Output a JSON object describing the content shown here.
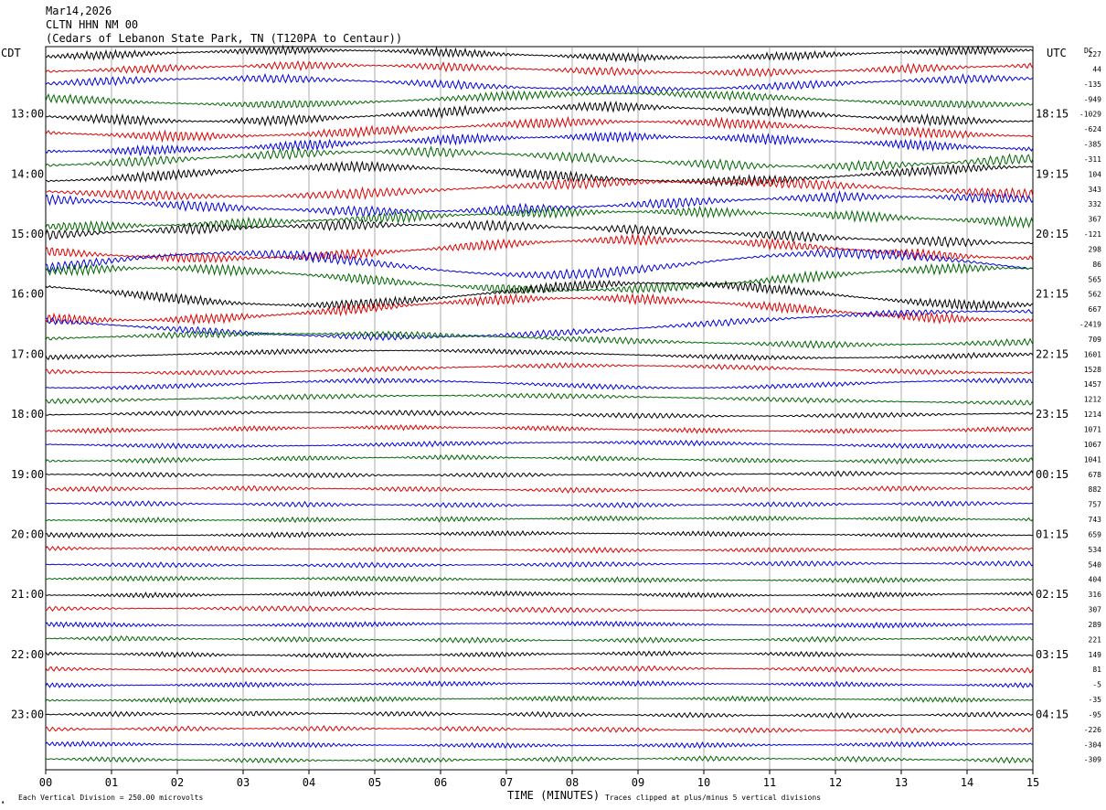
{
  "header": {
    "date": "Mar14,2026",
    "station": "CLTN HHN NM 00",
    "location": "(Cedars of Lebanon State Park, TN (T120PA to Centaur))"
  },
  "labels": {
    "left_tz": "CDT",
    "right_tz": "UTC",
    "dc_header": "DC",
    "x_title": "TIME (MINUTES)",
    "scale_note": "Each Vertical Division =  250.00 microvolts",
    "clip_note": "Traces clipped at plus/minus 5 vertical divisions"
  },
  "chart_data": {
    "type": "line",
    "subtype": "helicorder",
    "colors": [
      "#000000",
      "#dd0000",
      "#0000dd",
      "#006600"
    ],
    "x_ticks": [
      "00",
      "01",
      "02",
      "03",
      "04",
      "05",
      "06",
      "07",
      "08",
      "09",
      "10",
      "11",
      "12",
      "13",
      "14",
      "15"
    ],
    "xlim": [
      0,
      15
    ],
    "rows_per_hour": 4,
    "left_hour_labels": [
      "13:00",
      "14:00",
      "15:00",
      "16:00",
      "17:00",
      "18:00",
      "19:00",
      "20:00",
      "21:00",
      "22:00",
      "23:00"
    ],
    "right_hour_labels": [
      "18:15",
      "19:15",
      "20:15",
      "21:15",
      "22:15",
      "23:15",
      "00:15",
      "01:15",
      "02:15",
      "03:15",
      "04:15"
    ],
    "dc_offsets": [
      "227",
      "44",
      "-135",
      "-949",
      "-1029",
      "-624",
      "-385",
      "-311",
      "104",
      "343",
      "332",
      "367",
      "-121",
      "298",
      "86",
      "565",
      "562",
      "667",
      "-2419",
      "709",
      "1601",
      "1528",
      "1457",
      "1212",
      "1214",
      "1071",
      "1067",
      "1041",
      "678",
      "882",
      "757",
      "743",
      "659",
      "534",
      "540",
      "404",
      "316",
      "307",
      "289",
      "221",
      "149",
      "81",
      "-5",
      "-35",
      "-95",
      "-226",
      "-304",
      "-309"
    ],
    "row_amplitude": [
      5,
      5,
      5,
      5,
      6,
      6,
      6,
      6,
      6,
      6,
      6,
      6,
      6,
      6,
      6,
      6,
      6,
      6,
      4,
      4,
      3,
      3,
      3,
      3,
      3,
      3,
      3,
      3,
      3,
      3,
      3,
      3,
      3,
      3,
      3,
      3,
      3,
      3,
      3,
      3,
      3,
      3,
      3,
      3,
      3,
      3,
      3,
      3
    ],
    "row_drift": [
      4,
      4,
      6,
      6,
      8,
      8,
      8,
      8,
      8,
      8,
      8,
      8,
      10,
      10,
      12,
      12,
      12,
      12,
      14,
      6,
      4,
      4,
      4,
      4,
      2,
      2,
      2,
      2,
      1,
      1,
      1,
      1,
      1,
      1,
      1,
      1,
      1,
      1,
      1,
      1,
      1,
      1,
      1,
      1,
      1,
      1,
      1,
      1
    ]
  }
}
